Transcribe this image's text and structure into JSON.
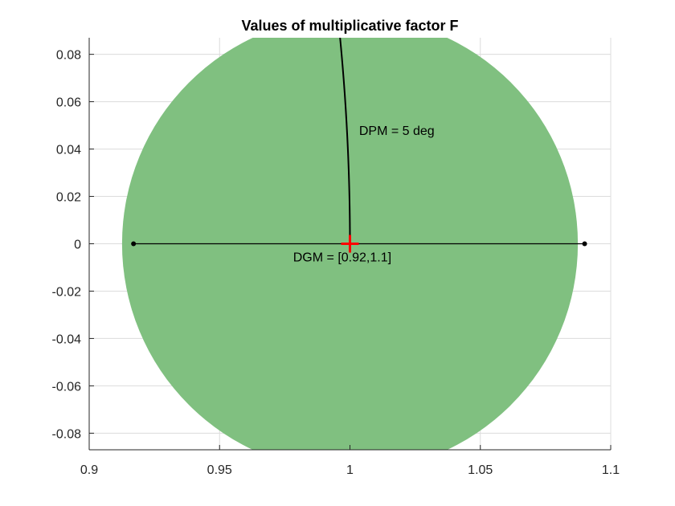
{
  "chart_data": {
    "type": "scatter",
    "title": "Values of multiplicative factor F",
    "xlabel": "",
    "ylabel": "",
    "xlim": [
      0.9,
      1.1
    ],
    "ylim": [
      -0.087,
      0.087
    ],
    "x_ticks": [
      0.9,
      0.95,
      1,
      1.05,
      1.1
    ],
    "x_tick_labels": [
      "0.9",
      "0.95",
      "1",
      "1.05",
      "1.1"
    ],
    "y_ticks": [
      -0.08,
      -0.06,
      -0.04,
      -0.02,
      0,
      0.02,
      0.04,
      0.06,
      0.08
    ],
    "y_tick_labels": [
      "-0.08",
      "-0.06",
      "-0.04",
      "-0.02",
      "0",
      "0.02",
      "0.04",
      "0.06",
      "0.08"
    ],
    "grid": true,
    "disk": {
      "center": [
        1.0,
        0.0
      ],
      "radius": 0.0874,
      "color": "#80c080"
    },
    "gain_margin_segment": {
      "x": [
        0.917,
        1.09
      ],
      "y": [
        0,
        0
      ],
      "color": "#000000"
    },
    "phase_margin_arc": {
      "radius": 1.0,
      "angle_deg_range": [
        0,
        5
      ],
      "color": "#000000"
    },
    "center_marker": {
      "x": 1.0,
      "y": 0.0,
      "marker": "+",
      "color": "#ff0000"
    },
    "annotations": [
      {
        "text": "DPM = 5 deg",
        "x": 1.0035,
        "y": 0.046
      },
      {
        "text": "DGM = [0.92,1.1]",
        "x": 0.9782,
        "y": -0.0075
      }
    ]
  }
}
